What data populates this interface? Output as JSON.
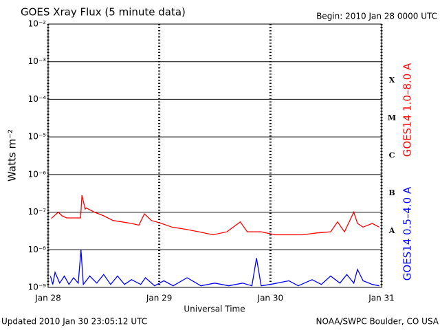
{
  "chart_data": {
    "type": "line",
    "title": "GOES Xray Flux (5 minute data)",
    "subtitle": "Begin:  2010 Jan 28 0000 UTC",
    "xlabel": "Universal Time",
    "ylabel": "Watts m⁻²",
    "footer_left": "Updated 2010 Jan 30 23:05:12 UTC",
    "footer_right": "NOAA/SWPC Boulder, CO USA",
    "flare_classes": [
      "X",
      "M",
      "C",
      "B",
      "A"
    ],
    "log_y": true,
    "grid": true,
    "xlim": [
      0,
      72
    ],
    "xticks": [
      {
        "value": 0,
        "label": "Jan 28"
      },
      {
        "value": 24,
        "label": "Jan 29"
      },
      {
        "value": 48,
        "label": "Jan 30"
      },
      {
        "value": 72,
        "label": "Jan 31"
      }
    ],
    "ylim": [
      1e-09,
      0.01
    ],
    "yticks": [
      {
        "value": 0.01,
        "label": "10⁻²"
      },
      {
        "value": 0.001,
        "label": "10⁻³"
      },
      {
        "value": 0.0001,
        "label": "10⁻⁴"
      },
      {
        "value": 1e-05,
        "label": "10⁻⁵"
      },
      {
        "value": 1e-06,
        "label": "10⁻⁶"
      },
      {
        "value": 1e-07,
        "label": "10⁻⁷"
      },
      {
        "value": 1e-08,
        "label": "10⁻⁸"
      },
      {
        "value": 1e-09,
        "label": "10⁻⁹"
      }
    ],
    "series": [
      {
        "name": "GOES14 1.0–8.0 A",
        "color": "#ff0000",
        "x": [
          0.7,
          2.2,
          3,
          4,
          5.5,
          7,
          7.3,
          8,
          8.2,
          10,
          12,
          14,
          16,
          18,
          19.6,
          20.8,
          22.3,
          24.5,
          26.7,
          29.7,
          32.6,
          35.6,
          38.6,
          41.5,
          43,
          46,
          49,
          52,
          55,
          58,
          61,
          62.5,
          64,
          66,
          66.8,
          68,
          70,
          71.5
        ],
        "values": [
          6.8e-08,
          1e-07,
          8e-08,
          7e-08,
          7e-08,
          7e-08,
          2.8e-07,
          1.2e-07,
          1.3e-07,
          1e-07,
          8e-08,
          6e-08,
          5.5e-08,
          5e-08,
          4.5e-08,
          9e-08,
          6e-08,
          5e-08,
          4e-08,
          3.5e-08,
          3e-08,
          2.5e-08,
          3e-08,
          5.5e-08,
          3e-08,
          3e-08,
          2.5e-08,
          2.5e-08,
          2.5e-08,
          2.8e-08,
          3e-08,
          5.5e-08,
          3e-08,
          1e-07,
          5e-08,
          4e-08,
          5e-08,
          4e-08
        ]
      },
      {
        "name": "GOES14 0.5–4.0 A",
        "color": "#0000ff",
        "x": [
          0.5,
          1,
          1.5,
          2.5,
          3.5,
          4.5,
          5.5,
          6.5,
          7.1,
          7.6,
          9,
          10.5,
          12,
          13.5,
          15,
          16.5,
          18,
          20,
          21,
          23,
          25,
          27,
          30,
          33,
          36,
          39,
          42,
          44,
          45,
          46,
          48,
          52,
          54,
          57,
          59,
          61,
          63,
          64.5,
          66,
          66.8,
          68,
          70,
          71.5
        ],
        "values": [
          2e-09,
          1.2e-09,
          2.5e-09,
          1.3e-09,
          2e-09,
          1.2e-09,
          1.8e-09,
          1.3e-09,
          1e-08,
          1.2e-09,
          2e-09,
          1.3e-09,
          2.2e-09,
          1.2e-09,
          2e-09,
          1.2e-09,
          1.6e-09,
          1.2e-09,
          1.8e-09,
          1.1e-09,
          1.5e-09,
          1.1e-09,
          1.8e-09,
          1.1e-09,
          1.3e-09,
          1.1e-09,
          1.3e-09,
          1.1e-09,
          6e-09,
          1.1e-09,
          1.2e-09,
          1.5e-09,
          1.1e-09,
          1.6e-09,
          1.2e-09,
          2e-09,
          1.3e-09,
          2.2e-09,
          1.3e-09,
          3e-09,
          1.5e-09,
          1.2e-09,
          1.1e-09
        ]
      }
    ]
  }
}
